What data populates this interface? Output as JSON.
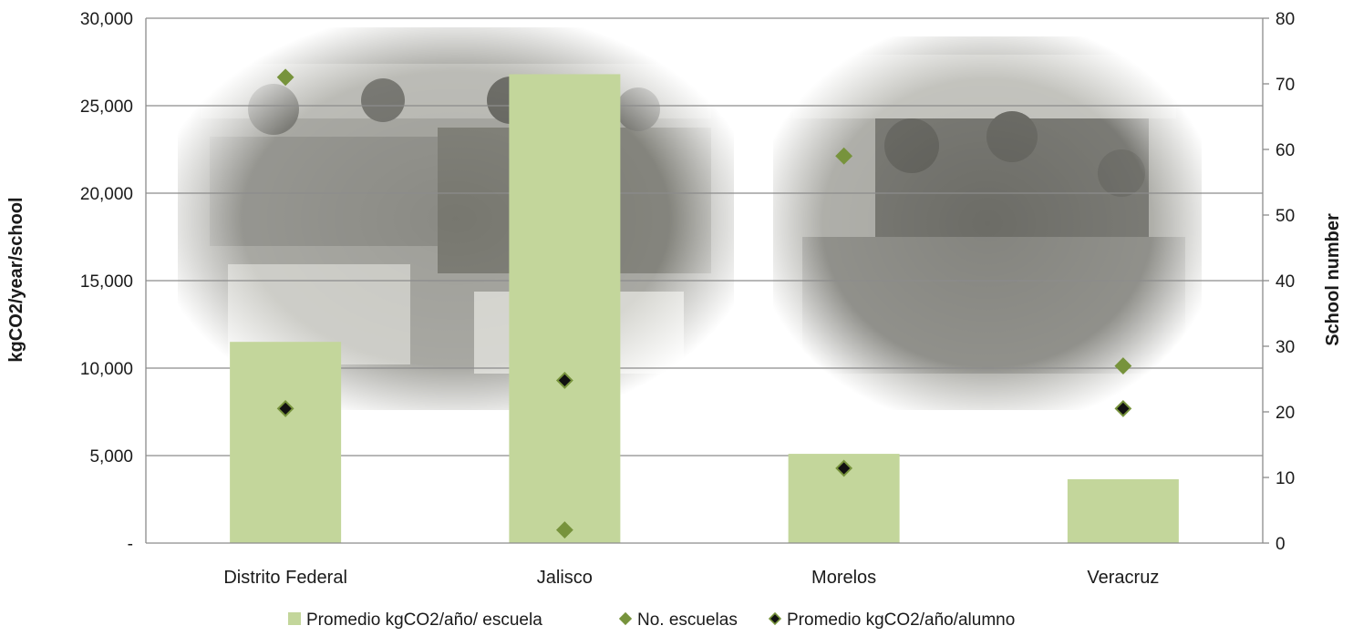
{
  "chart_data": {
    "type": "bar",
    "categories": [
      "Distrito Federal",
      "Jalisco",
      "Morelos",
      "Veracruz"
    ],
    "ylabel": "kgCO2/year/school",
    "y2label": "School number",
    "ylim": [
      0,
      30000
    ],
    "y2lim": [
      0,
      80
    ],
    "y_ticks": [
      "-",
      "5,000",
      "10,000",
      "15,000",
      "20,000",
      "25,000",
      "30,000"
    ],
    "y2_ticks": [
      "0",
      "10",
      "20",
      "30",
      "40",
      "50",
      "60",
      "70",
      "80"
    ],
    "grid": true,
    "legend_position": "bottom",
    "series": [
      {
        "name": "Promedio kgCO2/año/ escuela",
        "kind": "bar",
        "axis": "left",
        "values": [
          11500,
          26800,
          5100,
          3650
        ],
        "color": "#c3d69b"
      },
      {
        "name": "No. escuelas",
        "kind": "marker",
        "axis": "right",
        "values": [
          71,
          2,
          59,
          27
        ],
        "color": "#77933c"
      },
      {
        "name": "Promedio kgCO2/año/alumno",
        "kind": "marker",
        "axis": "right",
        "values": [
          20.5,
          24.8,
          11.4,
          20.5
        ],
        "color": "#111111",
        "edge": "#77933c"
      }
    ]
  }
}
